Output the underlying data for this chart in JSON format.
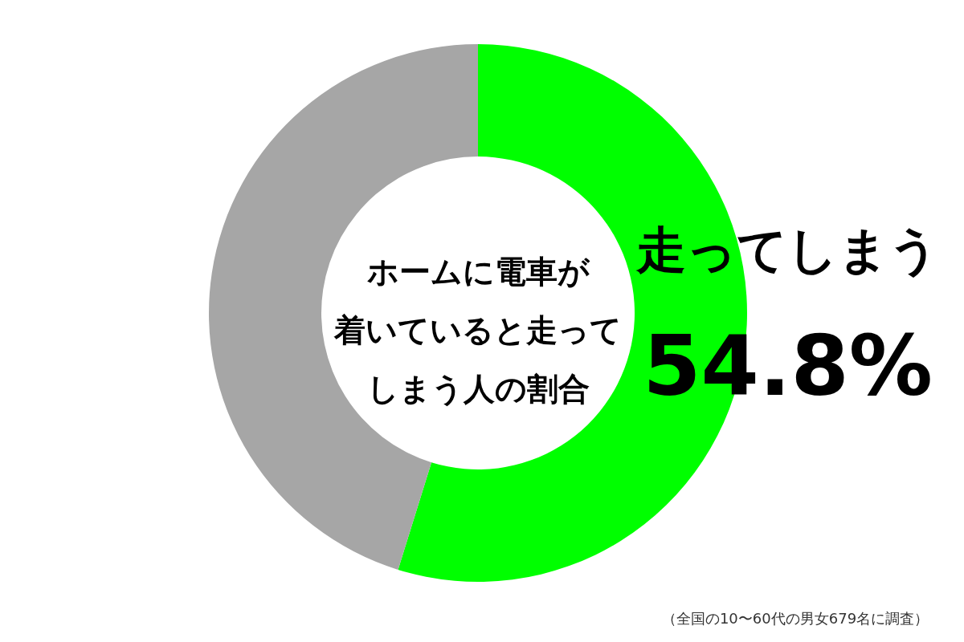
{
  "chart_data": {
    "type": "donut",
    "title": "ホームに電車が着いていると走ってしまう人の割合",
    "categories": [
      "走ってしまう",
      null
    ],
    "values": [
      54.8,
      45.2
    ],
    "colors": [
      "#00ff00",
      "#a6a6a6"
    ],
    "value_labels": [
      "54.8%",
      null
    ],
    "annotations": [
      "（全国の10〜60代の男女679名に調査）"
    ]
  }
}
